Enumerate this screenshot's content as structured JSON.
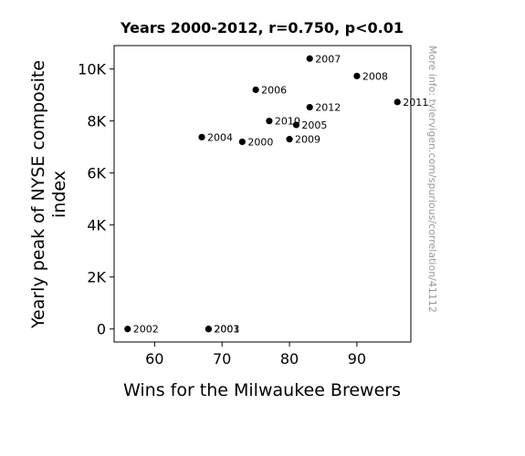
{
  "chart_data": {
    "type": "scatter",
    "title": "Years 2000-2012, r=0.750, p<0.01",
    "xlabel": "Wins for the Milwaukee Brewers",
    "ylabel_lines": [
      "Yearly peak of NYSE composite",
      "index"
    ],
    "xlim": [
      54,
      98
    ],
    "ylim": [
      -500,
      10900
    ],
    "x_ticks": [
      {
        "value": 60,
        "label": "60"
      },
      {
        "value": 70,
        "label": "70"
      },
      {
        "value": 80,
        "label": "80"
      },
      {
        "value": 90,
        "label": "90"
      }
    ],
    "y_ticks": [
      {
        "value": 0,
        "label": "0"
      },
      {
        "value": 2000,
        "label": "2K"
      },
      {
        "value": 4000,
        "label": "4K"
      },
      {
        "value": 6000,
        "label": "6K"
      },
      {
        "value": 8000,
        "label": "8K"
      },
      {
        "value": 10000,
        "label": "10K"
      }
    ],
    "points": [
      {
        "label": "2000",
        "x": 73,
        "y": 7200
      },
      {
        "label": "2001",
        "x": 68,
        "y": 0
      },
      {
        "label": "2002",
        "x": 56,
        "y": 0
      },
      {
        "label": "2003",
        "x": 68,
        "y": 0
      },
      {
        "label": "2004",
        "x": 67,
        "y": 7380
      },
      {
        "label": "2005",
        "x": 81,
        "y": 7850
      },
      {
        "label": "2006",
        "x": 75,
        "y": 9200
      },
      {
        "label": "2007",
        "x": 83,
        "y": 10400
      },
      {
        "label": "2008",
        "x": 90,
        "y": 9730
      },
      {
        "label": "2009",
        "x": 80,
        "y": 7300
      },
      {
        "label": "2010",
        "x": 77,
        "y": 8000
      },
      {
        "label": "2011",
        "x": 96,
        "y": 8730
      },
      {
        "label": "2012",
        "x": 83,
        "y": 8530
      }
    ],
    "point_color": "#000000",
    "grid": false,
    "legend": "none",
    "watermark": "More info: tylervigen.com/spurious/correlation/41112"
  }
}
